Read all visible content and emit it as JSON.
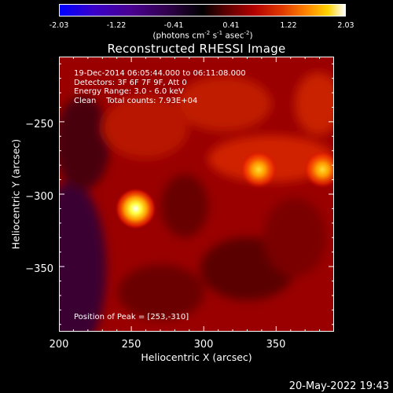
{
  "colorbar": {
    "ticks": [
      -2.03,
      -1.22,
      -0.41,
      0.41,
      1.22,
      2.03
    ],
    "tick_labels": [
      "-2.03",
      "-1.22",
      "-0.41",
      "0.41",
      "1.22",
      "2.03"
    ],
    "units_prefix": "(photons cm",
    "units_exp1": "-2",
    "units_mid1": " s",
    "units_exp2": "-1",
    "units_mid2": " asec",
    "units_exp3": "-2",
    "units_suffix": ")"
  },
  "chart_data": {
    "type": "heatmap",
    "title": "Reconstructed RHESSI Image",
    "xlabel": "Heliocentric X (arcsec)",
    "ylabel": "Heliocentric Y (arcsec)",
    "xlim": [
      200,
      390
    ],
    "ylim": [
      -395,
      -205
    ],
    "x_ticks": [
      200,
      250,
      300,
      350
    ],
    "y_ticks": [
      -250,
      -300,
      -350
    ],
    "color_range": [
      -2.03,
      2.03
    ],
    "peaks": [
      {
        "x": 253,
        "y": -310,
        "value": 2.03
      },
      {
        "x": 338,
        "y": -283,
        "value": 1.6
      },
      {
        "x": 382,
        "y": -283,
        "value": 1.55
      }
    ],
    "annotations": {
      "time_range": "19-Dec-2014 06:05:44.000 to 06:11:08.000",
      "detectors": "Detectors: 3F 6F 7F 9F, Att 0",
      "energy_range": "Energy Range: 3.0 - 6.0 keV",
      "method": "Clean",
      "total_counts": "Total counts: 7.93E+04",
      "peak_position": "Position of Peak = [253,-310]"
    }
  },
  "timestamp": "20-May-2022 19:43"
}
